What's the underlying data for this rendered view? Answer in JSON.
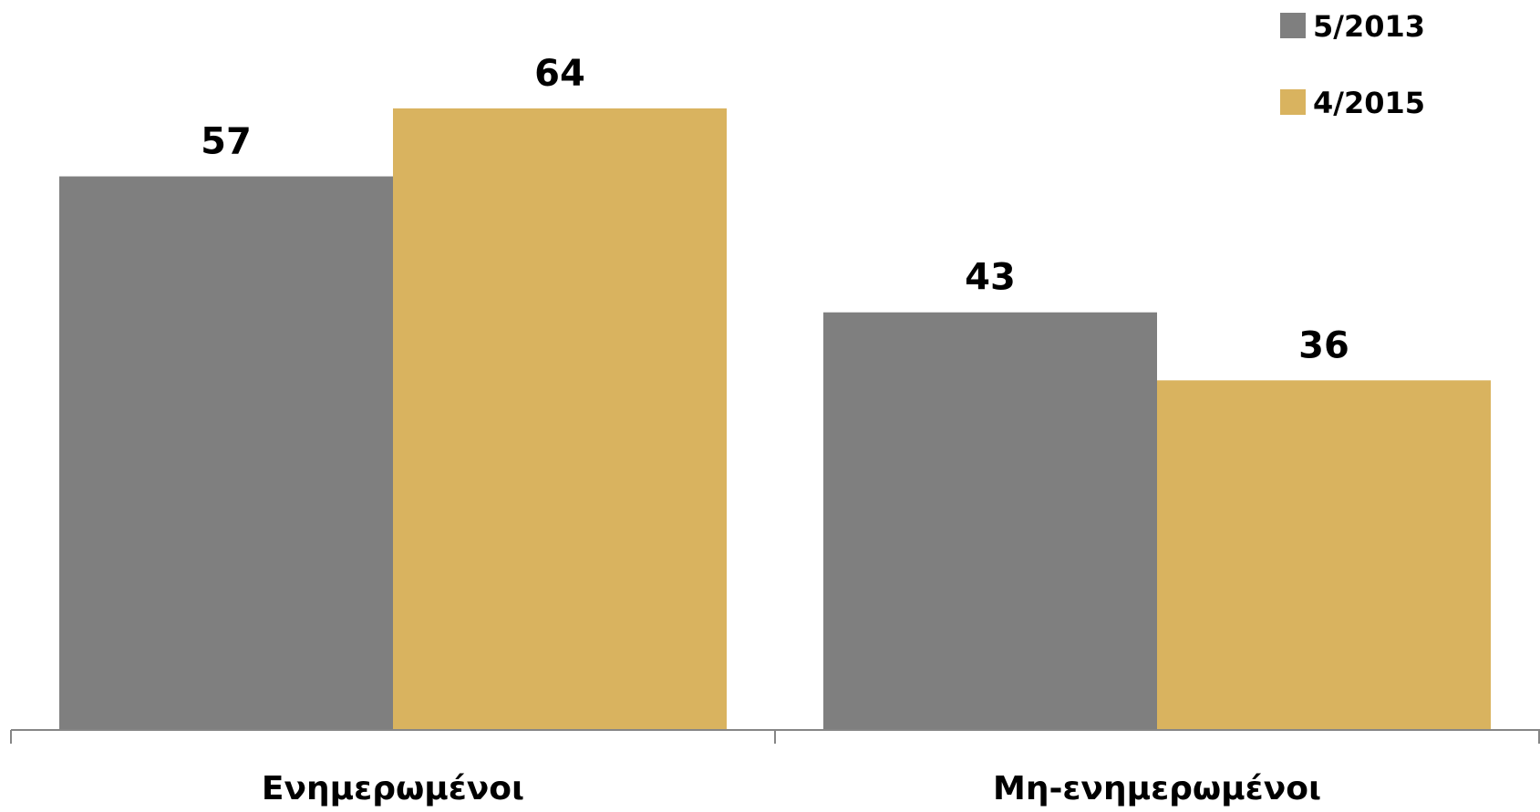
{
  "chart_data": {
    "type": "bar",
    "categories": [
      "Ενημερωμένοι",
      "Μη-ενημερωμένοι"
    ],
    "series": [
      {
        "name": "5/2013",
        "values": [
          57,
          43
        ],
        "color": "#7f7f7f"
      },
      {
        "name": "4/2015",
        "values": [
          64,
          36
        ],
        "color": "#d9b35f"
      }
    ],
    "ylim": [
      0,
      70
    ],
    "grid": false,
    "legend": "top-right",
    "data_labels": true
  }
}
